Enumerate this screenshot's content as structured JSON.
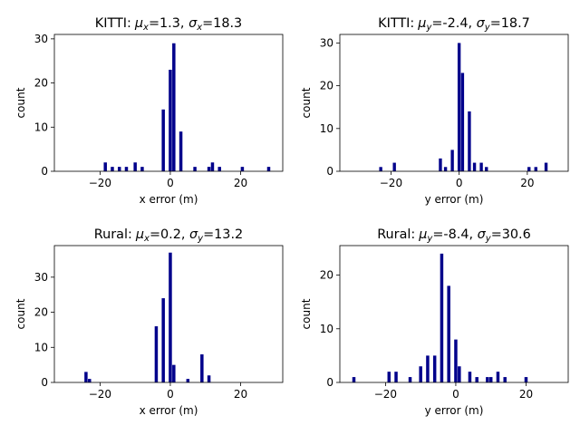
{
  "chart_data": [
    {
      "type": "bar",
      "title": "KITTI: μx=1.3, σx=18.3",
      "title_parts": {
        "dataset": "KITTI:",
        "mu_sym": "μ",
        "mu_sub": "x",
        "mu_val": "=1.3, ",
        "sigma_sym": "σ",
        "sigma_sub": "x",
        "sigma_val": "=18.3"
      },
      "xlabel": "x error (m)",
      "ylabel": "count",
      "xlim": [
        -33,
        32
      ],
      "ylim": [
        0,
        31
      ],
      "xticks": [
        -20,
        0,
        20
      ],
      "xtick_labels": [
        "−20",
        "0",
        "20"
      ],
      "yticks": [
        0,
        10,
        20,
        30
      ],
      "ytick_labels": [
        "0",
        "10",
        "20",
        "30"
      ],
      "bar_color": "#00008b",
      "bin_width": 0.9,
      "x": [
        -18.5,
        -16.5,
        -14.5,
        -12.5,
        -10.0,
        -8.0,
        -2.0,
        0.0,
        1.0,
        3.0,
        7.0,
        11.0,
        12.0,
        14.0,
        20.5,
        28.0
      ],
      "values": [
        2,
        1,
        1,
        1,
        2,
        1,
        14,
        23,
        29,
        9,
        1,
        1,
        2,
        1,
        1,
        1
      ]
    },
    {
      "type": "bar",
      "title": "KITTI: μy=-2.4, σy=18.7",
      "title_parts": {
        "dataset": "KITTI:",
        "mu_sym": "μ",
        "mu_sub": "y",
        "mu_val": "=-2.4, ",
        "sigma_sym": "σ",
        "sigma_sub": "y",
        "sigma_val": "=18.7"
      },
      "xlabel": "y error (m)",
      "ylabel": "count",
      "xlim": [
        -35,
        32
      ],
      "ylim": [
        0,
        32
      ],
      "xticks": [
        -20,
        0,
        20
      ],
      "xtick_labels": [
        "−20",
        "0",
        "20"
      ],
      "yticks": [
        0,
        10,
        20,
        30
      ],
      "ytick_labels": [
        "0",
        "10",
        "20",
        "30"
      ],
      "bar_color": "#00008b",
      "bin_width": 0.9,
      "x": [
        -23.0,
        -19.0,
        -5.5,
        -4.0,
        -2.0,
        0.0,
        1.0,
        3.0,
        4.5,
        6.5,
        8.0,
        20.5,
        22.5,
        25.5
      ],
      "values": [
        1,
        2,
        3,
        1,
        5,
        30,
        23,
        14,
        2,
        2,
        1,
        1,
        1,
        2
      ]
    },
    {
      "type": "bar",
      "title": "Rural: μx=0.2, σy=13.2",
      "title_parts": {
        "dataset": "Rural:",
        "mu_sym": "μ",
        "mu_sub": "x",
        "mu_val": "=0.2, ",
        "sigma_sym": "σ",
        "sigma_sub": "y",
        "sigma_val": "=13.2"
      },
      "xlabel": "x error (m)",
      "ylabel": "count",
      "xlim": [
        -33,
        32
      ],
      "ylim": [
        0,
        39
      ],
      "xticks": [
        -20,
        0,
        20
      ],
      "xtick_labels": [
        "−20",
        "0",
        "20"
      ],
      "yticks": [
        0,
        10,
        20,
        30
      ],
      "ytick_labels": [
        "0",
        "10",
        "20",
        "30"
      ],
      "bar_color": "#00008b",
      "bin_width": 0.9,
      "x": [
        -24.0,
        -23.0,
        -4.0,
        -2.0,
        0.0,
        1.0,
        5.0,
        9.0,
        11.0
      ],
      "values": [
        3,
        1,
        16,
        24,
        37,
        5,
        1,
        8,
        2
      ]
    },
    {
      "type": "bar",
      "title": "Rural: μy=-8.4, σy=30.6",
      "title_parts": {
        "dataset": "Rural:",
        "mu_sym": "μ",
        "mu_sub": "y",
        "mu_val": "=-8.4, ",
        "sigma_sym": "σ",
        "sigma_sub": "y",
        "sigma_val": "=30.6"
      },
      "xlabel": "y error (m)",
      "ylabel": "count",
      "xlim": [
        -33,
        32
      ],
      "ylim": [
        0,
        25.5
      ],
      "xticks": [
        -20,
        0,
        20
      ],
      "xtick_labels": [
        "−20",
        "0",
        "20"
      ],
      "yticks": [
        0,
        10,
        20
      ],
      "ytick_labels": [
        "0",
        "10",
        "20"
      ],
      "bar_color": "#00008b",
      "bin_width": 0.9,
      "x": [
        -29.0,
        -19.0,
        -17.0,
        -13.0,
        -10.0,
        -8.0,
        -6.0,
        -4.0,
        -2.0,
        0.0,
        1.0,
        4.0,
        6.0,
        9.0,
        10.0,
        12.0,
        14.0,
        20.0
      ],
      "values": [
        1,
        2,
        2,
        1,
        3,
        5,
        5,
        24,
        18,
        8,
        3,
        2,
        1,
        1,
        1,
        2,
        1,
        1
      ]
    }
  ]
}
